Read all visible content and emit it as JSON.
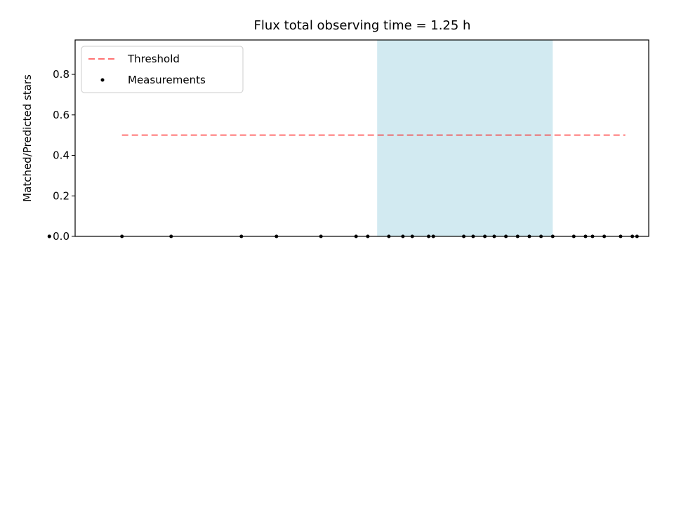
{
  "chart_data": [
    {
      "type": "scatter",
      "title": "Flux total observing time = 1.25 h",
      "xlabel": "",
      "ylabel": "Matched/Predicted stars",
      "ylim": [
        0,
        0.97
      ],
      "yticks": [
        "0.0",
        "0.2",
        "0.4",
        "0.6",
        "0.8"
      ],
      "legend_position": "upper-left",
      "shaded_interval": {
        "start": "00:34",
        "end": "01:49",
        "color": "#add8e6"
      },
      "series": [
        {
          "name": "Threshold",
          "kind": "dashed-line",
          "color": "#ff0000",
          "x": [
            "22:45",
            "02:20"
          ],
          "y": [
            0.5,
            0.5
          ]
        },
        {
          "name": "Measurements",
          "kind": "dot",
          "color": "#000000",
          "x": [
            "22:45",
            "23:06",
            "23:36",
            "23:51",
            "22:14",
            "00:10",
            "00:25",
            "00:30",
            "00:39",
            "00:45",
            "00:49",
            "00:56",
            "00:58",
            "01:11",
            "01:15",
            "01:20",
            "01:24",
            "01:29",
            "01:34",
            "01:39",
            "01:44",
            "01:49",
            "01:58",
            "02:03",
            "02:06",
            "02:11",
            "02:18",
            "02:23",
            "02:25",
            "22:14"
          ],
          "y": [
            0,
            0,
            0,
            0,
            0,
            0,
            0,
            0,
            0,
            0,
            0,
            0,
            0,
            0,
            0,
            0,
            0,
            0,
            0,
            0,
            0,
            0,
            0,
            0,
            0,
            0,
            0,
            0,
            0,
            0
          ]
        }
      ]
    }
  ]
}
